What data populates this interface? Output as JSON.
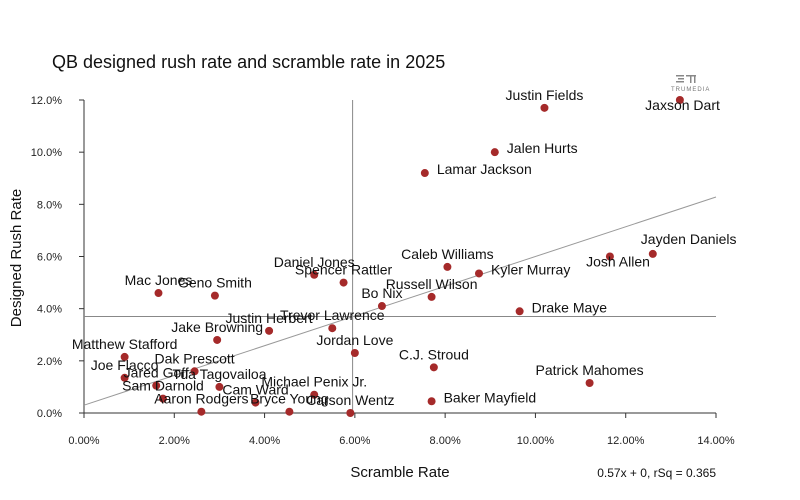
{
  "chart_data": {
    "type": "scatter",
    "title": "QB designed rush rate and scramble rate in 2025",
    "xlabel": "Scramble Rate",
    "ylabel": "Designed Rush Rate",
    "xlim": [
      0,
      14
    ],
    "ylim": [
      0,
      12
    ],
    "x_ticks": [
      0,
      2,
      4,
      6,
      8,
      10,
      12,
      14
    ],
    "y_ticks": [
      0,
      2,
      4,
      6,
      8,
      10,
      12
    ],
    "x_tick_labels": [
      "0.00%",
      "2.00%",
      "4.00%",
      "6.00%",
      "8.00%",
      "10.00%",
      "12.00%",
      "14.00%"
    ],
    "y_tick_labels": [
      "0.0%",
      "2.0%",
      "4.0%",
      "6.0%",
      "8.0%",
      "10.0%",
      "12.0%"
    ],
    "grid": false,
    "mean_lines": {
      "x": 5.95,
      "y": 3.7
    },
    "trendline": {
      "slope": 0.57,
      "intercept": 0.3
    },
    "trendline_label": "0.57x + 0, rSq = 0.365",
    "logo_text": "TRUMEDIA",
    "point_color": "#a52a2a",
    "points": [
      {
        "name": "Justin Fields",
        "x": 10.2,
        "y": 11.7
      },
      {
        "name": "Jaxson Dart",
        "x": 13.2,
        "y": 12.0
      },
      {
        "name": "Jalen Hurts",
        "x": 9.1,
        "y": 10.0
      },
      {
        "name": "Lamar Jackson",
        "x": 7.55,
        "y": 9.2
      },
      {
        "name": "Josh Allen",
        "x": 11.65,
        "y": 6.0
      },
      {
        "name": "Jayden Daniels",
        "x": 12.6,
        "y": 6.1
      },
      {
        "name": "Caleb Williams",
        "x": 8.05,
        "y": 5.6
      },
      {
        "name": "Kyler Murray",
        "x": 8.75,
        "y": 5.35
      },
      {
        "name": "Daniel Jones",
        "x": 5.1,
        "y": 5.3
      },
      {
        "name": "Spencer Rattler",
        "x": 5.75,
        "y": 5.0
      },
      {
        "name": "Mac Jones",
        "x": 1.65,
        "y": 4.6
      },
      {
        "name": "Geno Smith",
        "x": 2.9,
        "y": 4.5
      },
      {
        "name": "Bo Nix",
        "x": 6.6,
        "y": 4.1
      },
      {
        "name": "Russell Wilson",
        "x": 7.7,
        "y": 4.45
      },
      {
        "name": "Drake Maye",
        "x": 9.65,
        "y": 3.9
      },
      {
        "name": "Justin Herbert",
        "x": 4.1,
        "y": 3.15
      },
      {
        "name": "Jake Browning",
        "x": 2.95,
        "y": 2.8
      },
      {
        "name": "Trevor Lawrence",
        "x": 5.5,
        "y": 3.25
      },
      {
        "name": "Jordan Love",
        "x": 6.0,
        "y": 2.3
      },
      {
        "name": "C.J. Stroud",
        "x": 7.75,
        "y": 1.75
      },
      {
        "name": "Matthew Stafford",
        "x": 0.9,
        "y": 2.15
      },
      {
        "name": "Dak Prescott",
        "x": 2.45,
        "y": 1.6
      },
      {
        "name": "Joe Flacco",
        "x": 0.9,
        "y": 1.35
      },
      {
        "name": "Jared Goff",
        "x": 1.6,
        "y": 1.05
      },
      {
        "name": "Tua Tagovailoa",
        "x": 3.0,
        "y": 1.0
      },
      {
        "name": "Cam Ward",
        "x": 3.8,
        "y": 0.4
      },
      {
        "name": "Michael Penix Jr.",
        "x": 5.1,
        "y": 0.7
      },
      {
        "name": "Baker Mayfield",
        "x": 7.7,
        "y": 0.45
      },
      {
        "name": "Carson Wentz",
        "x": 5.9,
        "y": 0.0
      },
      {
        "name": "Sam Darnold",
        "x": 1.75,
        "y": 0.55
      },
      {
        "name": "Aaron Rodgers",
        "x": 2.6,
        "y": 0.05
      },
      {
        "name": "Bryce Young",
        "x": 4.55,
        "y": 0.05
      },
      {
        "name": "Patrick Mahomes",
        "x": 11.2,
        "y": 1.15
      }
    ]
  }
}
